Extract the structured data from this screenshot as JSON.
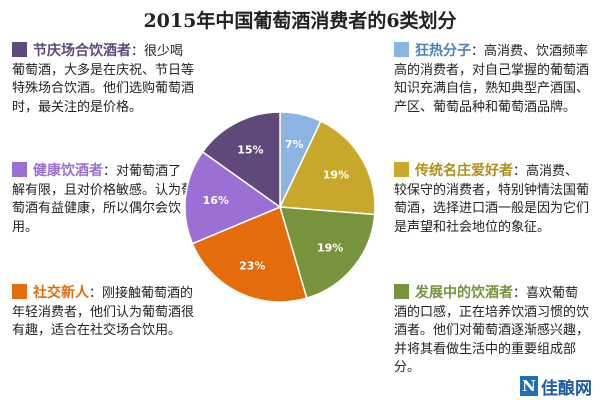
{
  "title": "2015年中国葡萄酒消费者的6类划分",
  "logo_text": "佳酿网",
  "chart_data": {
    "type": "pie",
    "title": "2015年中国葡萄酒消费者的6类划分",
    "start_angle_deg": 0,
    "direction": "clockwise",
    "slices": [
      {
        "label": "狂热分子",
        "value": 7,
        "display": "7%",
        "color": "#8db3e2"
      },
      {
        "label": "传统名庄爱好者",
        "value": 19,
        "display": "19%",
        "color": "#c7a82a"
      },
      {
        "label": "发展中的饮酒者",
        "value": 19,
        "display": "19%",
        "color": "#77933c"
      },
      {
        "label": "社交新人",
        "value": 23,
        "display": "23%",
        "color": "#e46c0a"
      },
      {
        "label": "健康饮酒者",
        "value": 16,
        "display": "16%",
        "color": "#9b6fd3"
      },
      {
        "label": "节庆场合饮酒者",
        "value": 15,
        "display": "15%",
        "color": "#5f497a"
      }
    ]
  },
  "descriptions": {
    "festive": {
      "name": "节庆场合饮酒者",
      "sep": "：",
      "desc": "很少喝葡萄酒，大多是在庆祝、节日等特殊场合饮酒。他们选购葡萄酒时，最关注的是价格。"
    },
    "healthy": {
      "name": "健康饮酒者",
      "sep": "：",
      "desc": "对葡萄酒了解有限，且对价格敏感。认为葡萄酒有益健康，所以偶尔会饮用。"
    },
    "social": {
      "name": "社交新人",
      "sep": "：",
      "desc": "刚接触葡萄酒的年轻消费者，他们认为葡萄酒很有趣，适合在社交场合饮用。"
    },
    "fanatic": {
      "name": "狂热分子",
      "sep": "：",
      "desc": "高消费、饮酒频率高的消费者，对自己掌握的葡萄酒知识充满自信，熟知典型产酒国、产区、葡萄品种和葡萄酒品牌。"
    },
    "traditional": {
      "name": "传统名庄爱好者",
      "sep": "：",
      "desc": "高消费、较保守的消费者，特别钟情法国葡萄酒，选择进口酒一般是因为它们是声望和社会地位的象征。"
    },
    "developing": {
      "name": "发展中的饮酒者",
      "sep": "：",
      "desc": "喜欢葡萄酒的口感，正在培养饮酒习惯的饮酒者。他们对葡萄酒逐渐感兴趣，并将其看做生活中的重要组成部分。"
    }
  },
  "colors": {
    "festive": "#5f497a",
    "healthy": "#9b6fd3",
    "social": "#e46c0a",
    "fanatic": "#8db3e2",
    "traditional": "#c7a82a",
    "developing": "#77933c"
  }
}
